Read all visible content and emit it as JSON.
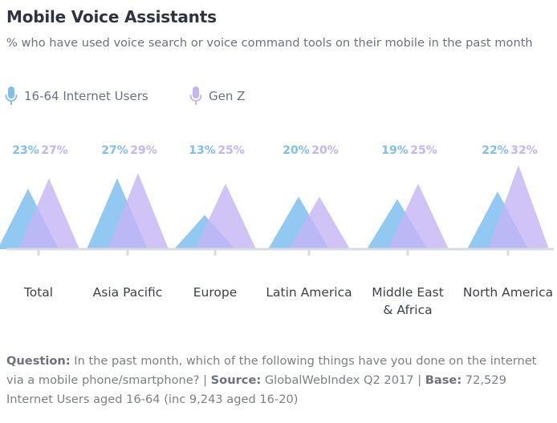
{
  "header": {
    "title": "Mobile Voice Assistants",
    "subtitle": "% who have used voice search or voice command tools on their mobile in the past month"
  },
  "legend": [
    {
      "label": "16-64 Internet Users",
      "color": "#7fbff0",
      "icon": "microphone-icon"
    },
    {
      "label": "Gen Z",
      "color": "#c4b5f5",
      "icon": "microphone-icon"
    }
  ],
  "footnote": {
    "question_label": "Question:",
    "question_text": " In the past month, which of the following things have you done on the internet via a mobile phone/smartphone? | ",
    "source_label": "Source:",
    "source_text": " GlobalWebIndex Q2 2017 | ",
    "base_label": "Base:",
    "base_text": " 72,529 Internet Users aged 16-64 (inc 9,243 aged 16-20)"
  },
  "chart_data": {
    "type": "area",
    "categories": [
      "Total",
      "Asia Pacific",
      "Europe",
      "Latin America",
      "Middle East & Africa",
      "North America"
    ],
    "category_lines": [
      [
        "Total"
      ],
      [
        "Asia Pacific"
      ],
      [
        "Europe"
      ],
      [
        "Latin America"
      ],
      [
        "Middle East",
        "& Africa"
      ],
      [
        "North America"
      ]
    ],
    "series": [
      {
        "name": "16-64 Internet Users",
        "values": [
          23,
          27,
          13,
          20,
          19,
          22
        ],
        "labels": [
          "23%",
          "27%",
          "13%",
          "20%",
          "19%",
          "22%"
        ],
        "color": "#7fbff0",
        "label_color": "#7fbff0"
      },
      {
        "name": "Gen Z",
        "values": [
          27,
          29,
          25,
          20,
          25,
          32
        ],
        "labels": [
          "27%",
          "29%",
          "25%",
          "20%",
          "25%",
          "32%"
        ],
        "color": "#c4b5f5",
        "label_color": "#c4b5f5"
      }
    ],
    "ylim": [
      0,
      35
    ]
  }
}
